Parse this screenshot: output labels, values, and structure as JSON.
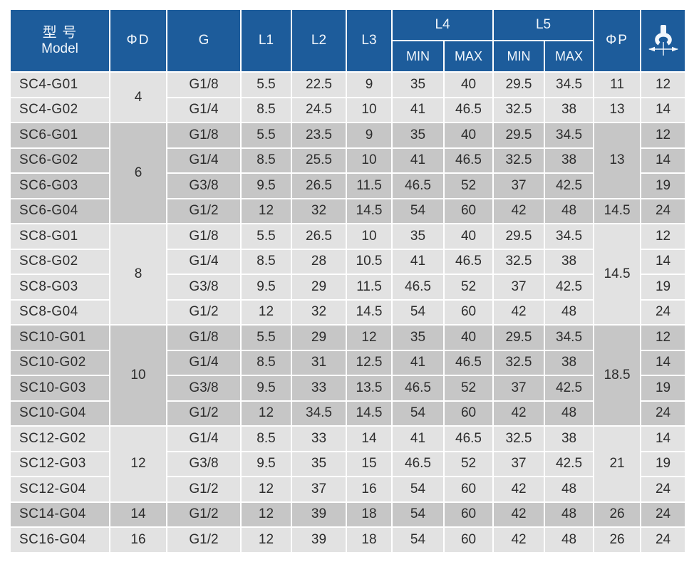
{
  "colors": {
    "header_bg": "#1d5c9b",
    "header_text": "#f2f7fc",
    "row_light": "#e2e2e2",
    "row_dark": "#c6c6c6",
    "grid": "#ffffff",
    "body_text": "#2d2d2d"
  },
  "header": {
    "model_zh": "型 号",
    "model_en": "Model",
    "phi_d": "ΦD",
    "g": "G",
    "l1": "L1",
    "l2": "L2",
    "l3": "L3",
    "l4": "L4",
    "l5": "L5",
    "min": "MIN",
    "max": "MAX",
    "phi_p": "ΦP",
    "wrench_icon": "wrench-size-icon"
  },
  "groups": [
    {
      "shade": "light",
      "phi_d": "4",
      "phi_p": [
        {
          "value": "11",
          "span": 1
        },
        {
          "value": "13",
          "span": 1
        }
      ],
      "rows": [
        {
          "model": "SC4-G01",
          "g": "G1/8",
          "l1": "5.5",
          "l2": "22.5",
          "l3": "9",
          "l4_min": "35",
          "l4_max": "40",
          "l5_min": "29.5",
          "l5_max": "34.5",
          "wrench": "12"
        },
        {
          "model": "SC4-G02",
          "g": "G1/4",
          "l1": "8.5",
          "l2": "24.5",
          "l3": "10",
          "l4_min": "41",
          "l4_max": "46.5",
          "l5_min": "32.5",
          "l5_max": "38",
          "wrench": "14"
        }
      ]
    },
    {
      "shade": "dark",
      "phi_d": "6",
      "phi_p": [
        {
          "value": "13",
          "span": 3
        },
        {
          "value": "14.5",
          "span": 1
        }
      ],
      "rows": [
        {
          "model": "SC6-G01",
          "g": "G1/8",
          "l1": "5.5",
          "l2": "23.5",
          "l3": "9",
          "l4_min": "35",
          "l4_max": "40",
          "l5_min": "29.5",
          "l5_max": "34.5",
          "wrench": "12"
        },
        {
          "model": "SC6-G02",
          "g": "G1/4",
          "l1": "8.5",
          "l2": "25.5",
          "l3": "10",
          "l4_min": "41",
          "l4_max": "46.5",
          "l5_min": "32.5",
          "l5_max": "38",
          "wrench": "14"
        },
        {
          "model": "SC6-G03",
          "g": "G3/8",
          "l1": "9.5",
          "l2": "26.5",
          "l3": "11.5",
          "l4_min": "46.5",
          "l4_max": "52",
          "l5_min": "37",
          "l5_max": "42.5",
          "wrench": "19"
        },
        {
          "model": "SC6-G04",
          "g": "G1/2",
          "l1": "12",
          "l2": "32",
          "l3": "14.5",
          "l4_min": "54",
          "l4_max": "60",
          "l5_min": "42",
          "l5_max": "48",
          "wrench": "24"
        }
      ]
    },
    {
      "shade": "light",
      "phi_d": "8",
      "phi_p": [
        {
          "value": "14.5",
          "span": 4
        }
      ],
      "rows": [
        {
          "model": "SC8-G01",
          "g": "G1/8",
          "l1": "5.5",
          "l2": "26.5",
          "l3": "10",
          "l4_min": "35",
          "l4_max": "40",
          "l5_min": "29.5",
          "l5_max": "34.5",
          "wrench": "12"
        },
        {
          "model": "SC8-G02",
          "g": "G1/4",
          "l1": "8.5",
          "l2": "28",
          "l3": "10.5",
          "l4_min": "41",
          "l4_max": "46.5",
          "l5_min": "32.5",
          "l5_max": "38",
          "wrench": "14"
        },
        {
          "model": "SC8-G03",
          "g": "G3/8",
          "l1": "9.5",
          "l2": "29",
          "l3": "11.5",
          "l4_min": "46.5",
          "l4_max": "52",
          "l5_min": "37",
          "l5_max": "42.5",
          "wrench": "19"
        },
        {
          "model": "SC8-G04",
          "g": "G1/2",
          "l1": "12",
          "l2": "32",
          "l3": "14.5",
          "l4_min": "54",
          "l4_max": "60",
          "l5_min": "42",
          "l5_max": "48",
          "wrench": "24"
        }
      ]
    },
    {
      "shade": "dark",
      "phi_d": "10",
      "phi_p": [
        {
          "value": "18.5",
          "span": 4
        }
      ],
      "rows": [
        {
          "model": "SC10-G01",
          "g": "G1/8",
          "l1": "5.5",
          "l2": "29",
          "l3": "12",
          "l4_min": "35",
          "l4_max": "40",
          "l5_min": "29.5",
          "l5_max": "34.5",
          "wrench": "12"
        },
        {
          "model": "SC10-G02",
          "g": "G1/4",
          "l1": "8.5",
          "l2": "31",
          "l3": "12.5",
          "l4_min": "41",
          "l4_max": "46.5",
          "l5_min": "32.5",
          "l5_max": "38",
          "wrench": "14"
        },
        {
          "model": "SC10-G03",
          "g": "G3/8",
          "l1": "9.5",
          "l2": "33",
          "l3": "13.5",
          "l4_min": "46.5",
          "l4_max": "52",
          "l5_min": "37",
          "l5_max": "42.5",
          "wrench": "19"
        },
        {
          "model": "SC10-G04",
          "g": "G1/2",
          "l1": "12",
          "l2": "34.5",
          "l3": "14.5",
          "l4_min": "54",
          "l4_max": "60",
          "l5_min": "42",
          "l5_max": "48",
          "wrench": "24"
        }
      ]
    },
    {
      "shade": "light",
      "phi_d": "12",
      "phi_p": [
        {
          "value": "21",
          "span": 3
        }
      ],
      "rows": [
        {
          "model": "SC12-G02",
          "g": "G1/4",
          "l1": "8.5",
          "l2": "33",
          "l3": "14",
          "l4_min": "41",
          "l4_max": "46.5",
          "l5_min": "32.5",
          "l5_max": "38",
          "wrench": "14"
        },
        {
          "model": "SC12-G03",
          "g": "G3/8",
          "l1": "9.5",
          "l2": "35",
          "l3": "15",
          "l4_min": "46.5",
          "l4_max": "52",
          "l5_min": "37",
          "l5_max": "42.5",
          "wrench": "19"
        },
        {
          "model": "SC12-G04",
          "g": "G1/2",
          "l1": "12",
          "l2": "37",
          "l3": "16",
          "l4_min": "54",
          "l4_max": "60",
          "l5_min": "42",
          "l5_max": "48",
          "wrench": "24"
        }
      ]
    },
    {
      "shade": "dark",
      "phi_d": "14",
      "phi_p": [
        {
          "value": "26",
          "span": 1
        }
      ],
      "rows": [
        {
          "model": "SC14-G04",
          "g": "G1/2",
          "l1": "12",
          "l2": "39",
          "l3": "18",
          "l4_min": "54",
          "l4_max": "60",
          "l5_min": "42",
          "l5_max": "48",
          "wrench": "24"
        }
      ]
    },
    {
      "shade": "light",
      "phi_d": "16",
      "phi_p": [
        {
          "value": "26",
          "span": 1
        }
      ],
      "rows": [
        {
          "model": "SC16-G04",
          "g": "G1/2",
          "l1": "12",
          "l2": "39",
          "l3": "18",
          "l4_min": "54",
          "l4_max": "60",
          "l5_min": "42",
          "l5_max": "48",
          "wrench": "24"
        }
      ]
    }
  ]
}
